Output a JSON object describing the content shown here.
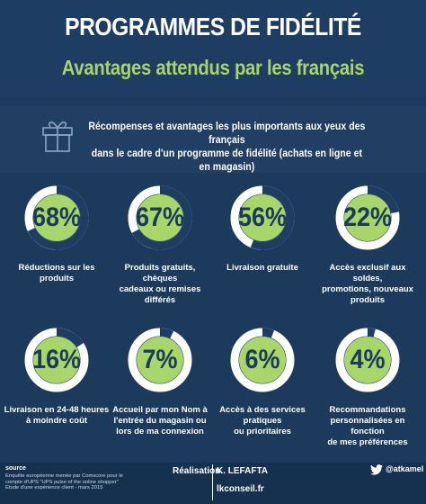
{
  "header": {
    "title": "PROGRAMMES DE FIDÉLITÉ",
    "subtitle": "Avantages attendus par les français"
  },
  "intro": {
    "line1": "Récompenses  et avantages les plus importants aux yeux des français",
    "line2": "dans le cadre d'un programme de fidélité (achats en ligne et en magasin)"
  },
  "colors": {
    "ring_fill": "#a8d66b",
    "ring_track": "#ffffff",
    "background": "#1c3a5c"
  },
  "stats": [
    {
      "value": "68%",
      "fraction": 0.68,
      "label_lines": [
        "Réductions sur les produits"
      ]
    },
    {
      "value": "67%",
      "fraction": 0.67,
      "label_lines": [
        "Produits gratuits, chèques",
        "cadeaux ou remises différés"
      ]
    },
    {
      "value": "56%",
      "fraction": 0.56,
      "label_lines": [
        "Livraison gratuite"
      ]
    },
    {
      "value": "22%",
      "fraction": 0.22,
      "label_lines": [
        "Accès exclusif aux soldes,",
        "promotions, nouveaux produits"
      ]
    },
    {
      "value": "16%",
      "fraction": 0.16,
      "label_lines": [
        "Livraison en 24-48 heures",
        "à moindre coût"
      ]
    },
    {
      "value": "7%",
      "fraction": 0.07,
      "label_lines": [
        "Accueil par mon Nom à",
        "l'entrée du magasin ou",
        "lors de ma connexion"
      ]
    },
    {
      "value": "6%",
      "fraction": 0.06,
      "label_lines": [
        "Accès à des services pratiques",
        "ou prioritaires"
      ]
    },
    {
      "value": "4%",
      "fraction": 0.04,
      "label_lines": [
        "Recommandations",
        "personnalisées en fonction",
        "de mes préférences"
      ]
    }
  ],
  "footer": {
    "source_title": "source",
    "source_lines": [
      "Enquête européenne menée par Comscore pour le",
      "compte d'UPS \"UPS pulse of the online shopper\"",
      "Etude d'une expérience client - mars 2015"
    ],
    "realisation_label": "Réalisation",
    "author": "K. LEFAFTA",
    "site": "lkconseil.fr",
    "twitter_handle": "@atkamel"
  }
}
